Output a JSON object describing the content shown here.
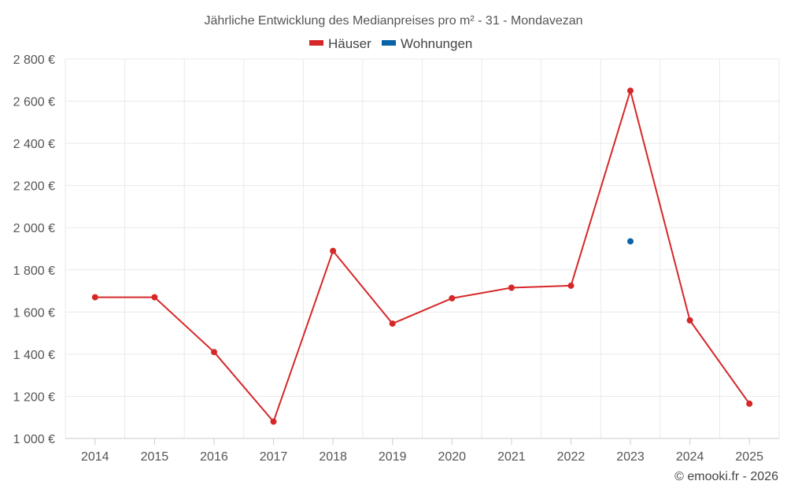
{
  "chart_data": {
    "type": "line",
    "title": "Jährliche Entwicklung des Medianpreises pro m² - 31 - Mondavezan",
    "categories": [
      "2014",
      "2015",
      "2016",
      "2017",
      "2018",
      "2019",
      "2020",
      "2021",
      "2022",
      "2023",
      "2024",
      "2025"
    ],
    "series": [
      {
        "name": "Häuser",
        "color": "#d62728",
        "values": [
          1670,
          1670,
          1410,
          1080,
          1890,
          1545,
          1665,
          1715,
          1725,
          2650,
          1560,
          1165
        ]
      },
      {
        "name": "Wohnungen",
        "color": "#0a63a6",
        "values": [
          null,
          null,
          null,
          null,
          null,
          null,
          null,
          null,
          null,
          1935,
          null,
          null
        ]
      }
    ],
    "ylim": [
      1000,
      2800
    ],
    "yticks": [
      1000,
      1200,
      1400,
      1600,
      1800,
      2000,
      2200,
      2400,
      2600,
      2800
    ],
    "ytick_labels": [
      "1 000 €",
      "1 200 €",
      "1 400 €",
      "1 600 €",
      "1 800 €",
      "2 000 €",
      "2 200 €",
      "2 400 €",
      "2 600 €",
      "2 800 €"
    ],
    "grid": true,
    "legend": "top-center",
    "credit": "© emooki.fr - 2026"
  }
}
